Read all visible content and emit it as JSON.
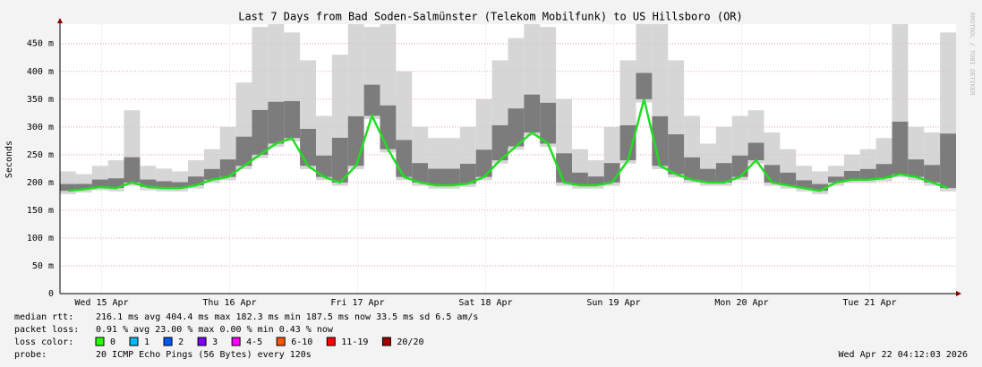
{
  "chart_data": {
    "type": "smoke",
    "title": "Last 7 Days from Bad Soden-Salmünster (Telekom Mobilfunk) to US Hillsboro (OR)",
    "y_label": "Seconds",
    "side_text": "RRDTOOL / TOBI OETIKER",
    "x": [
      0,
      0.125,
      0.25,
      0.375,
      0.5,
      0.625,
      0.75,
      0.875,
      1,
      1.125,
      1.25,
      1.375,
      1.5,
      1.625,
      1.75,
      1.875,
      2,
      2.125,
      2.25,
      2.375,
      2.5,
      2.625,
      2.75,
      2.875,
      3,
      3.125,
      3.25,
      3.375,
      3.5,
      3.625,
      3.75,
      3.875,
      4,
      4.125,
      4.25,
      4.375,
      4.5,
      4.625,
      4.75,
      4.875,
      5,
      5.125,
      5.25,
      5.375,
      5.5,
      5.625,
      5.75,
      5.875,
      6,
      6.125,
      6.25,
      6.375,
      6.5,
      6.625,
      6.75,
      6.875
    ],
    "values": [
      185,
      188,
      192,
      190,
      200,
      192,
      190,
      190,
      195,
      205,
      210,
      230,
      250,
      270,
      280,
      230,
      210,
      200,
      230,
      320,
      260,
      210,
      200,
      195,
      195,
      198,
      210,
      240,
      265,
      290,
      270,
      200,
      195,
      195,
      200,
      240,
      350,
      230,
      215,
      205,
      200,
      200,
      210,
      240,
      200,
      195,
      190,
      185,
      200,
      205,
      205,
      208,
      215,
      210,
      200,
      190
    ],
    "smoke_high": [
      220,
      215,
      230,
      240,
      330,
      230,
      225,
      220,
      240,
      260,
      300,
      380,
      480,
      485,
      470,
      420,
      320,
      430,
      485,
      480,
      485,
      400,
      300,
      280,
      280,
      300,
      350,
      420,
      460,
      485,
      480,
      350,
      260,
      240,
      300,
      420,
      485,
      485,
      420,
      320,
      270,
      300,
      320,
      330,
      290,
      260,
      230,
      220,
      230,
      250,
      260,
      280,
      485,
      300,
      290,
      470
    ],
    "color": "#22dd22",
    "xlim": [
      0,
      7
    ],
    "xticks": [
      {
        "value": 0.325,
        "label": "Wed 15 Apr"
      },
      {
        "value": 1.325,
        "label": "Thu 16 Apr"
      },
      {
        "value": 2.325,
        "label": "Fri 17 Apr"
      },
      {
        "value": 3.325,
        "label": "Sat 18 Apr"
      },
      {
        "value": 4.325,
        "label": "Sun 19 Apr"
      },
      {
        "value": 5.325,
        "label": "Mon 20 Apr"
      },
      {
        "value": 6.325,
        "label": "Tue 21 Apr"
      }
    ],
    "ylim": [
      0,
      485
    ],
    "yticks": [
      0,
      {
        "value": 50,
        "label": "50 m"
      },
      {
        "value": 100,
        "label": "100 m"
      },
      {
        "value": 150,
        "label": "150 m"
      },
      {
        "value": 200,
        "label": "200 m"
      },
      {
        "value": 250,
        "label": "250 m"
      },
      {
        "value": 300,
        "label": "300 m"
      },
      {
        "value": 350,
        "label": "350 m"
      },
      {
        "value": 400,
        "label": "400 m"
      },
      {
        "value": 450,
        "label": "450 m"
      }
    ],
    "grid": true
  },
  "footer": {
    "median_label": "median rtt:",
    "median_stats": "216.1 ms avg   404.4 ms max   182.3 ms min   187.5 ms now   33.5 ms sd   6.5   am/s",
    "loss_label": "packet loss:",
    "loss_stats": "0.91 % avg   23.00 % max   0.00 % min   0.43 % now",
    "color_label": "loss color:",
    "loss_colors": [
      {
        "label": "0",
        "color": "#26ff00"
      },
      {
        "label": "1",
        "color": "#00b8ff"
      },
      {
        "label": "2",
        "color": "#0059ff"
      },
      {
        "label": "3",
        "color": "#7e00ff"
      },
      {
        "label": "4-5",
        "color": "#ff00ff"
      },
      {
        "label": "6-10",
        "color": "#ff5500"
      },
      {
        "label": "11-19",
        "color": "#ff0000"
      },
      {
        "label": "20/20",
        "color": "#a10000"
      }
    ],
    "probe_label": "probe:",
    "probe_text": "20 ICMP Echo Pings (56 Bytes) every 120s",
    "timestamp": "Wed Apr 22 04:12:03 2026"
  }
}
